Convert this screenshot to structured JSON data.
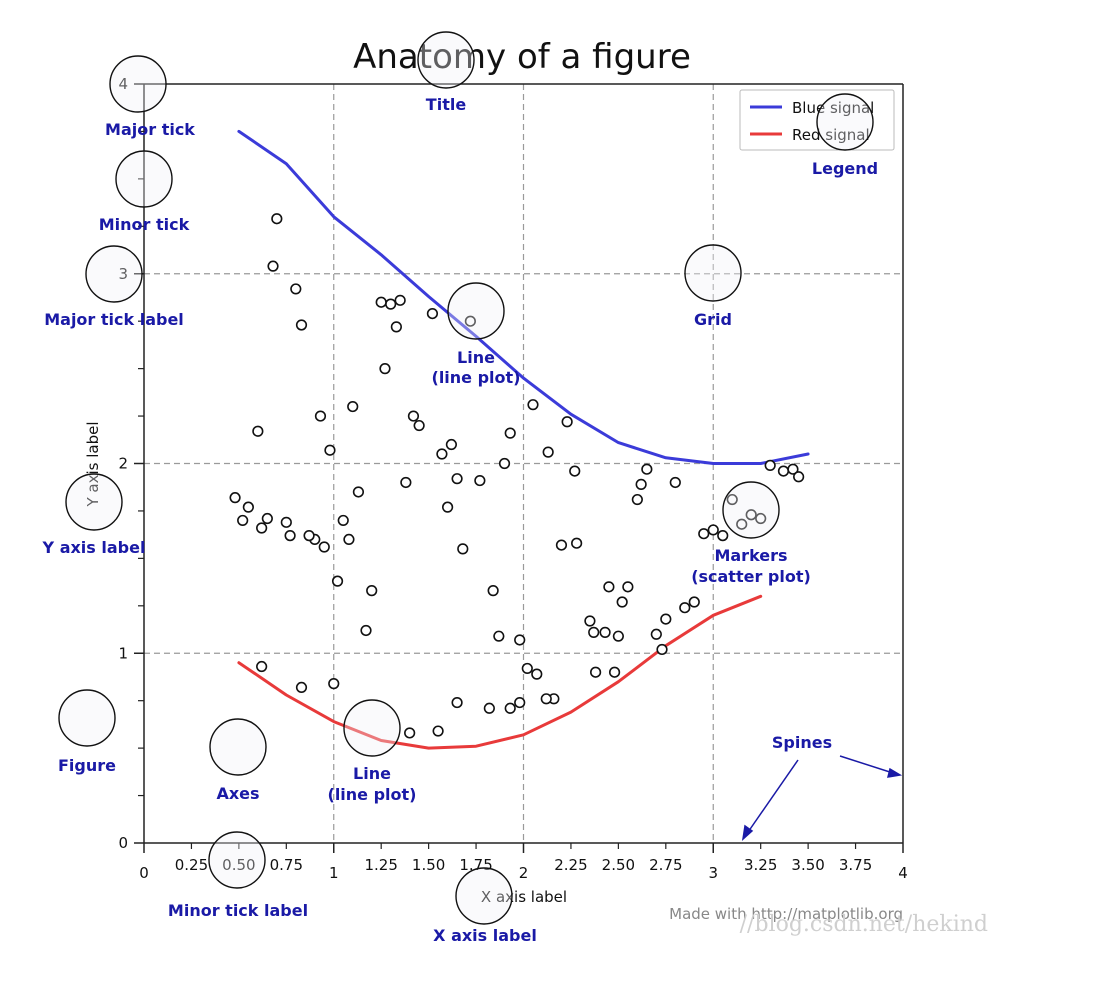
{
  "chart_data": {
    "type": "line",
    "title": "Anatomy of a figure",
    "xlabel": "X axis label",
    "ylabel": "Y axis label",
    "xlim": [
      0,
      4
    ],
    "ylim": [
      0,
      4
    ],
    "grid": true,
    "legend_position": "top-right",
    "x_major_ticks": [
      0,
      1,
      2,
      3,
      4
    ],
    "x_major_tick_labels": [
      "0",
      "1",
      "2",
      "3",
      "4"
    ],
    "x_minor_ticks": [
      0.25,
      0.5,
      0.75,
      1.25,
      1.5,
      1.75,
      2.25,
      2.5,
      2.75,
      3.25,
      3.5,
      3.75
    ],
    "x_minor_tick_labels": [
      "0.25",
      "0.50",
      "0.75",
      "1.25",
      "1.50",
      "1.75",
      "2.25",
      "2.50",
      "2.75",
      "3.25",
      "3.50",
      "3.75"
    ],
    "y_major_ticks": [
      0,
      1,
      2,
      3,
      4
    ],
    "y_major_tick_labels": [
      "0",
      "1",
      "2",
      "3",
      "4"
    ],
    "series": [
      {
        "name": "Blue signal",
        "type": "line",
        "color": "#3b3bd9",
        "x": [
          0.5,
          0.75,
          1.0,
          1.25,
          1.5,
          1.75,
          2.0,
          2.25,
          2.5,
          2.75,
          3.0,
          3.25,
          3.5
        ],
        "y": [
          3.75,
          3.58,
          3.3,
          3.1,
          2.88,
          2.67,
          2.45,
          2.26,
          2.11,
          2.03,
          2.0,
          2.0,
          2.05
        ]
      },
      {
        "name": "Red signal",
        "type": "line",
        "color": "#e83a3a",
        "x": [
          0.5,
          0.75,
          1.0,
          1.25,
          1.5,
          1.75,
          2.0,
          2.25,
          2.5,
          2.75,
          3.0,
          3.25
        ],
        "y": [
          0.95,
          0.78,
          0.64,
          0.54,
          0.5,
          0.51,
          0.57,
          0.69,
          0.85,
          1.04,
          1.2,
          1.3
        ]
      },
      {
        "name": "",
        "type": "scatter",
        "color": "#111111",
        "x": [
          0.7,
          0.68,
          0.8,
          0.83,
          0.6,
          0.93,
          0.98,
          0.48,
          0.55,
          0.52,
          0.65,
          0.75,
          0.77,
          0.9,
          0.95,
          0.62,
          0.87,
          1.02,
          1.05,
          1.08,
          1.1,
          1.13,
          1.17,
          1.2,
          1.27,
          1.3,
          1.35,
          1.33,
          1.25,
          1.38,
          1.42,
          1.45,
          1.52,
          1.57,
          1.6,
          1.62,
          1.65,
          1.68,
          1.72,
          1.77,
          1.84,
          1.9,
          1.87,
          1.93,
          1.98,
          2.05,
          2.02,
          2.13,
          2.2,
          2.27,
          2.23,
          2.35,
          2.28,
          2.37,
          2.43,
          2.45,
          2.52,
          2.55,
          2.6,
          2.65,
          2.7,
          2.75,
          2.8,
          2.85,
          2.9,
          2.95,
          3.0,
          3.05,
          3.1,
          2.62,
          2.73,
          2.5,
          2.38,
          2.48,
          1.98,
          2.07,
          2.16,
          2.12,
          1.65,
          1.55,
          1.4,
          1.0,
          0.83,
          0.62,
          1.82,
          1.93,
          3.3,
          3.37,
          3.42,
          3.45,
          3.2,
          3.25,
          3.15
        ],
        "y": [
          3.29,
          3.04,
          2.92,
          2.73,
          2.17,
          2.25,
          2.07,
          1.82,
          1.77,
          1.7,
          1.71,
          1.69,
          1.62,
          1.6,
          1.56,
          1.66,
          1.62,
          1.38,
          1.7,
          1.6,
          2.3,
          1.85,
          1.12,
          1.33,
          2.5,
          2.84,
          2.86,
          2.72,
          2.85,
          1.9,
          2.25,
          2.2,
          2.79,
          2.05,
          1.77,
          2.1,
          1.92,
          1.55,
          2.75,
          1.91,
          1.33,
          2.0,
          1.09,
          2.16,
          1.07,
          2.31,
          0.92,
          2.06,
          1.57,
          1.96,
          2.22,
          1.17,
          1.58,
          1.11,
          1.11,
          1.35,
          1.27,
          1.35,
          1.81,
          1.97,
          1.1,
          1.18,
          1.9,
          1.24,
          1.27,
          1.63,
          1.65,
          1.62,
          1.81,
          1.89,
          1.02,
          1.09,
          0.9,
          0.9,
          0.74,
          0.89,
          0.76,
          0.76,
          0.74,
          0.59,
          0.58,
          0.84,
          0.82,
          0.93,
          0.71,
          0.71,
          1.99,
          1.96,
          1.97,
          1.93,
          1.73,
          1.71,
          1.68
        ]
      }
    ]
  },
  "annotations": {
    "title": "Title",
    "major_tick": "Major tick",
    "minor_tick": "Minor tick",
    "major_tick_label": "Major tick label",
    "y_axis_label": "Y axis label",
    "figure": "Figure",
    "axes": "Axes",
    "line_upper_1": "Line",
    "line_upper_2": "(line plot)",
    "line_lower_1": "Line",
    "line_lower_2": "(line plot)",
    "grid": "Grid",
    "legend": "Legend",
    "markers_1": "Markers",
    "markers_2": "(scatter plot)",
    "spines": "Spines",
    "minor_tick_label": "Minor tick label",
    "x_axis_label": "X axis label"
  },
  "footer": {
    "made_with": "Made with http://matplotlib.org",
    "watermark": "//blog.csdn.net/hekind"
  },
  "colors": {
    "annotation": "#1a1aa6",
    "grid": "#9a9a9a",
    "axes": "#222222"
  }
}
